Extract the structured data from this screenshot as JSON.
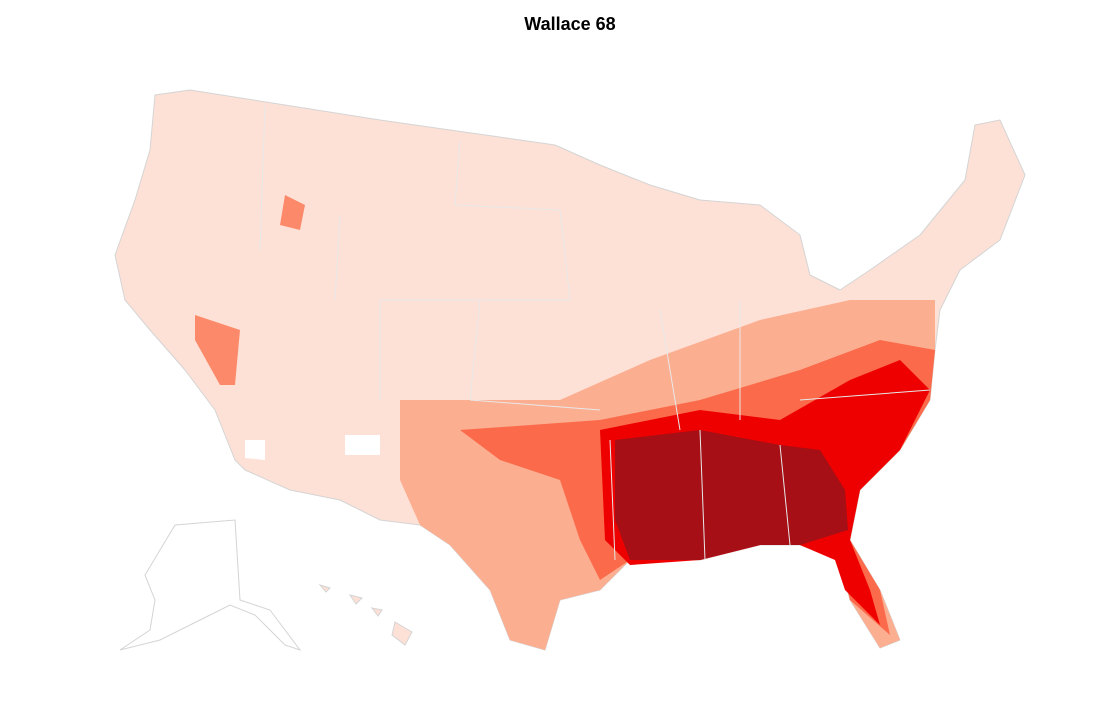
{
  "title": "Wallace 68"
}
